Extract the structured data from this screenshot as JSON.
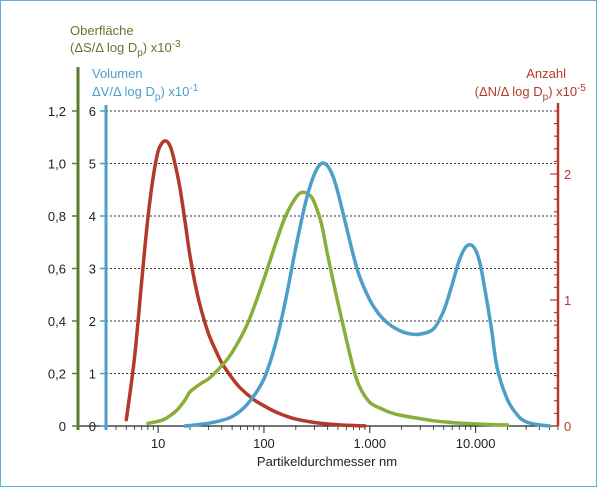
{
  "chart_data": {
    "type": "line",
    "xlabel": "Partikeldurchmesser nm",
    "x_scale": "log",
    "xlim": [
      4,
      60000
    ],
    "x_ticks": [
      10,
      100,
      1000,
      10000
    ],
    "x_tick_labels": [
      "10",
      "100",
      "1.000",
      "10.000"
    ],
    "axes": {
      "surface": {
        "title_line1": "Oberfläche",
        "title_line2": "(ΔS/Δ log D",
        "title_sub": "p",
        "title_tail": ") x10",
        "title_exp": "-3",
        "ylim": [
          0,
          1.2
        ],
        "ticks": [
          0,
          0.2,
          0.4,
          0.6,
          0.8,
          1.0,
          1.2
        ],
        "tick_labels": [
          "0",
          "0,2",
          "0,4",
          "0,6",
          "0,8",
          "1,0",
          "1,2"
        ],
        "color": "#5d7a2e"
      },
      "volume": {
        "title_line1": "Volumen",
        "title_line2": "ΔV/Δ log D",
        "title_sub": "p",
        "title_tail": ") x10",
        "title_exp": "-1",
        "ylim": [
          0,
          6
        ],
        "ticks": [
          0,
          1,
          2,
          3,
          4,
          5,
          6
        ],
        "tick_labels": [
          "0",
          "1",
          "2",
          "3",
          "4",
          "5",
          "6"
        ],
        "color": "#4d9fc9"
      },
      "number": {
        "title_line1": "Anzahl",
        "title_line2": "(ΔN/Δ log D",
        "title_sub": "p",
        "title_tail": ") x10",
        "title_exp": "-5",
        "ylim": [
          0,
          2.5
        ],
        "ticks": [
          0,
          1,
          2
        ],
        "tick_labels": [
          "0",
          "1",
          "2"
        ],
        "color": "#b33a2a"
      }
    },
    "series": [
      {
        "axis": "number",
        "color": "#b33a2a",
        "x": [
          5,
          6,
          7,
          8,
          9,
          10,
          11,
          12,
          13,
          14,
          16,
          18,
          20,
          23,
          26,
          30,
          35,
          40,
          50,
          60,
          80,
          100,
          130,
          160,
          200,
          300,
          400,
          500,
          600,
          700,
          800,
          900
        ],
        "y": [
          0.05,
          0.55,
          1.15,
          1.65,
          1.98,
          2.18,
          2.25,
          2.26,
          2.22,
          2.13,
          1.9,
          1.62,
          1.35,
          1.08,
          0.9,
          0.73,
          0.6,
          0.5,
          0.38,
          0.3,
          0.21,
          0.16,
          0.11,
          0.08,
          0.055,
          0.028,
          0.016,
          0.01,
          0.006,
          0.004,
          0.002,
          0.001
        ]
      },
      {
        "axis": "surface",
        "color": "#8aae3a",
        "x": [
          8,
          10,
          12,
          15,
          18,
          20,
          25,
          30,
          40,
          50,
          70,
          100,
          130,
          160,
          200,
          230,
          270,
          300,
          350,
          400,
          500,
          600,
          700,
          800,
          1000,
          1300,
          1600,
          2000,
          3000,
          4000,
          6000,
          8000,
          10000,
          15000,
          20000
        ],
        "y": [
          0.01,
          0.018,
          0.03,
          0.06,
          0.1,
          0.13,
          0.16,
          0.18,
          0.23,
          0.28,
          0.39,
          0.56,
          0.7,
          0.8,
          0.87,
          0.89,
          0.88,
          0.85,
          0.77,
          0.65,
          0.47,
          0.33,
          0.22,
          0.15,
          0.09,
          0.065,
          0.05,
          0.04,
          0.028,
          0.02,
          0.013,
          0.01,
          0.008,
          0.005,
          0.004
        ]
      },
      {
        "axis": "volume",
        "color": "#4d9fc9",
        "x": [
          18,
          25,
          35,
          50,
          70,
          100,
          130,
          160,
          200,
          250,
          300,
          350,
          400,
          450,
          500,
          600,
          700,
          800,
          1000,
          1200,
          1500,
          2000,
          2500,
          3000,
          4000,
          5000,
          6000,
          7000,
          8000,
          9000,
          10000,
          11000,
          12000,
          14000,
          16000,
          20000,
          25000,
          30000,
          40000,
          50000
        ],
        "y": [
          0.0,
          0.03,
          0.08,
          0.18,
          0.42,
          0.9,
          1.6,
          2.4,
          3.4,
          4.3,
          4.8,
          5.0,
          4.95,
          4.75,
          4.45,
          3.8,
          3.25,
          2.85,
          2.4,
          2.15,
          1.95,
          1.8,
          1.75,
          1.75,
          1.85,
          2.2,
          2.7,
          3.15,
          3.4,
          3.45,
          3.35,
          3.1,
          2.7,
          1.9,
          1.1,
          0.5,
          0.2,
          0.08,
          0.02,
          0.0
        ]
      }
    ]
  }
}
